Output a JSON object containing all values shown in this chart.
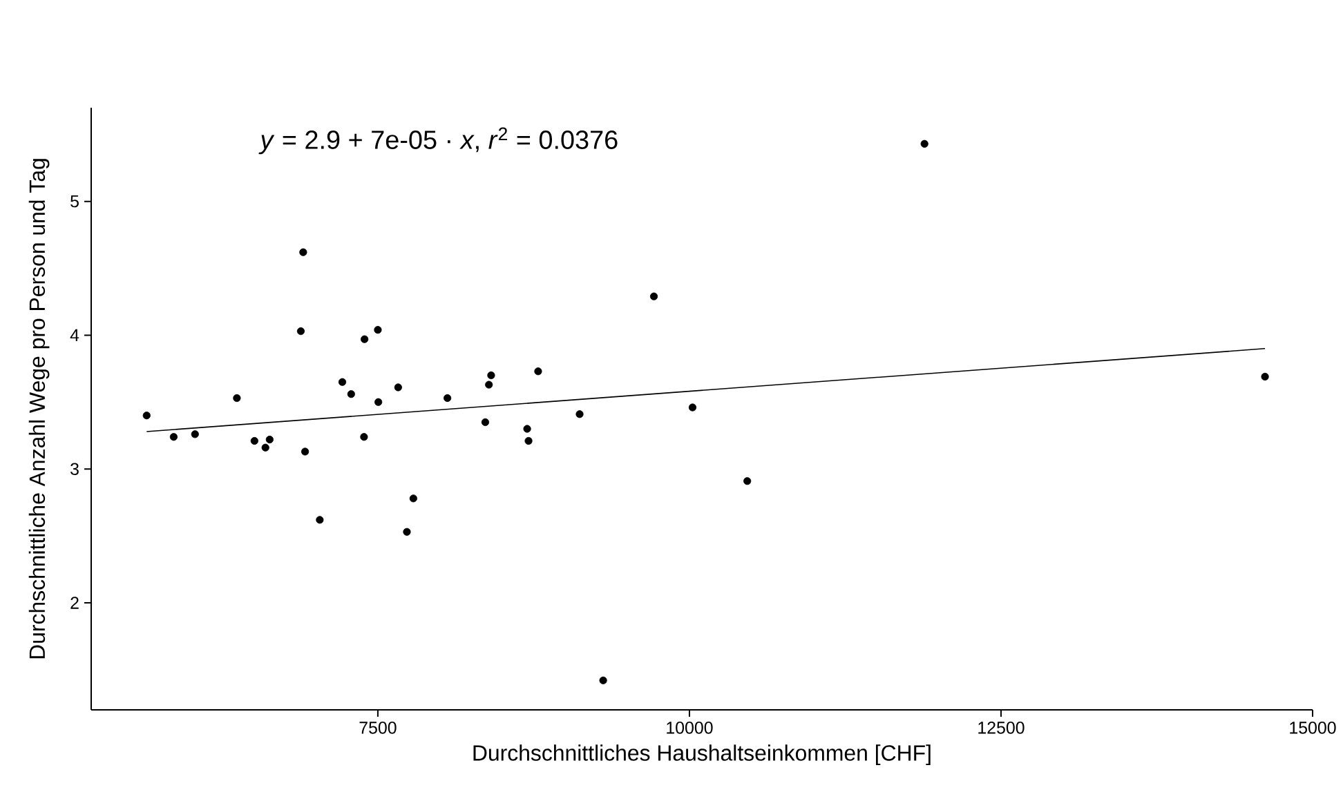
{
  "chart_data": {
    "type": "scatter",
    "xlabel": "Durchschnittliches Haushaltseinkommen [CHF]",
    "ylabel": "Durchschnittliche Anzahl Wege pro Person und Tag",
    "annotations": [
      "*y* = 2.9 + 7e-05 · *x*,  *r*$^{2}$ = 0.0376"
    ],
    "xlim": [
      5200,
      15000
    ],
    "ylim": [
      1.2,
      5.7
    ],
    "xticks": [
      7500,
      10000,
      12500,
      15000
    ],
    "yticks": [
      2,
      3,
      4,
      5
    ],
    "grid": false,
    "series": [
      {
        "marker": "circle",
        "color": "#000000",
        "x": [
          5645,
          5862,
          6033,
          6369,
          6510,
          6598,
          6632,
          6901,
          6882,
          6916,
          7034,
          7215,
          7286,
          7393,
          7389,
          7500,
          7504,
          7663,
          7733,
          7785,
          8058,
          8362,
          8391,
          8409,
          8698,
          8709,
          8786,
          9119,
          9308,
          9715,
          10025,
          10464,
          11886,
          14618
        ],
        "values": [
          3.4,
          3.24,
          3.26,
          3.53,
          3.21,
          3.16,
          3.22,
          4.62,
          4.03,
          3.13,
          2.62,
          3.65,
          3.56,
          3.97,
          3.24,
          4.04,
          3.5,
          3.61,
          2.53,
          2.78,
          3.53,
          3.35,
          3.63,
          3.7,
          3.3,
          3.21,
          3.73,
          3.41,
          1.42,
          4.29,
          3.46,
          2.91,
          5.43,
          3.69
        ]
      },
      {
        "type": "line",
        "line_style": "solid",
        "color": "#000000",
        "x": [
          5645,
          14618
        ],
        "values": [
          3.28,
          3.9
        ]
      }
    ]
  }
}
